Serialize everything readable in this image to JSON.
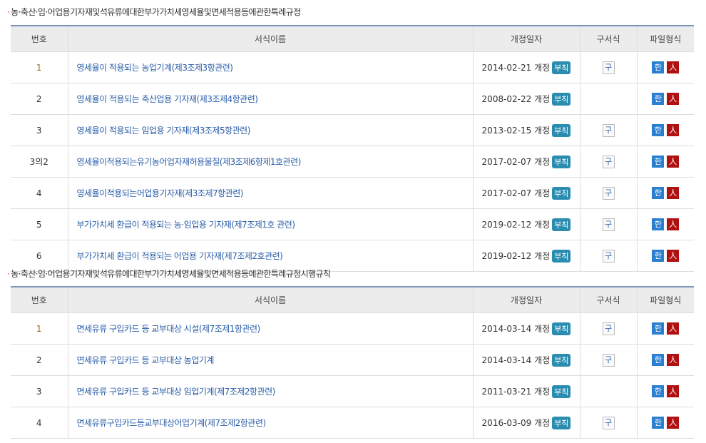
{
  "sections": [
    {
      "title": "농·축산·임·어업용기자재및석유류에대한부가가치세영세율및면세적용등에관한특례규정",
      "headers": [
        "번호",
        "서식이름",
        "개정일자",
        "구서식",
        "파일형식"
      ],
      "rows": [
        {
          "no": "1",
          "name": "영세율이 적용되는 농업기계(제3조제3항관련)",
          "date": "2014-02-21 개정",
          "old": true
        },
        {
          "no": "2",
          "name": "영세율이 적용되는 축산업용 기자재(제3조제4항관련)",
          "date": "2008-02-22 개정",
          "old": false
        },
        {
          "no": "3",
          "name": "영세율이 적용되는 임업용 기자재(제3조제5항관련)",
          "date": "2013-02-15 개정",
          "old": true
        },
        {
          "no": "3의2",
          "name": "영세율이적용되는유기농어업자재허용물질(제3조제6항제1호관련)",
          "date": "2017-02-07 개정",
          "old": true
        },
        {
          "no": "4",
          "name": "영세율이적용되는어업용기자재(제3조제7항관련)",
          "date": "2017-02-07 개정",
          "old": true
        },
        {
          "no": "5",
          "name": "부가가치세 환급이 적용되는 농·임업용 기자재(제7조제1호 관련)",
          "date": "2019-02-12 개정",
          "old": true
        },
        {
          "no": "6",
          "name": "부가가치세 환급이 적용되는 어업용 기자재(제7조제2호관련)",
          "date": "2019-02-12 개정",
          "old": true
        }
      ]
    },
    {
      "title": "농·축산·임·어업용기자재및석유류에대한부가가치세영세율및면세적용등에관한특례규정시행규칙",
      "headers": [
        "번호",
        "서식이름",
        "개정일자",
        "구서식",
        "파일형식"
      ],
      "rows": [
        {
          "no": "1",
          "name": "면세유류 구입카드 등 교부대상 시설(제7조제1항관련)",
          "date": "2014-03-14 개정",
          "old": true
        },
        {
          "no": "2",
          "name": "면세유류 구입카드 등 교부대상 농업기계",
          "date": "2014-03-14 개정",
          "old": true
        },
        {
          "no": "3",
          "name": "면세유류 구입카드 등 교부대상 임업기계(제7조제2항관련)",
          "date": "2011-03-21 개정",
          "old": false
        },
        {
          "no": "4",
          "name": "면세유류구입카드등교부대상어업기계(제7조제2항관련)",
          "date": "2016-03-09 개정",
          "old": true
        }
      ]
    }
  ],
  "labels": {
    "badge": "부칙",
    "old_icon": "구",
    "hwp_icon": "한",
    "pdf_icon": "人"
  },
  "colors": {
    "link": "#2a5ea8",
    "badge": "#2a8db0",
    "header_border": "#7f93b8"
  }
}
